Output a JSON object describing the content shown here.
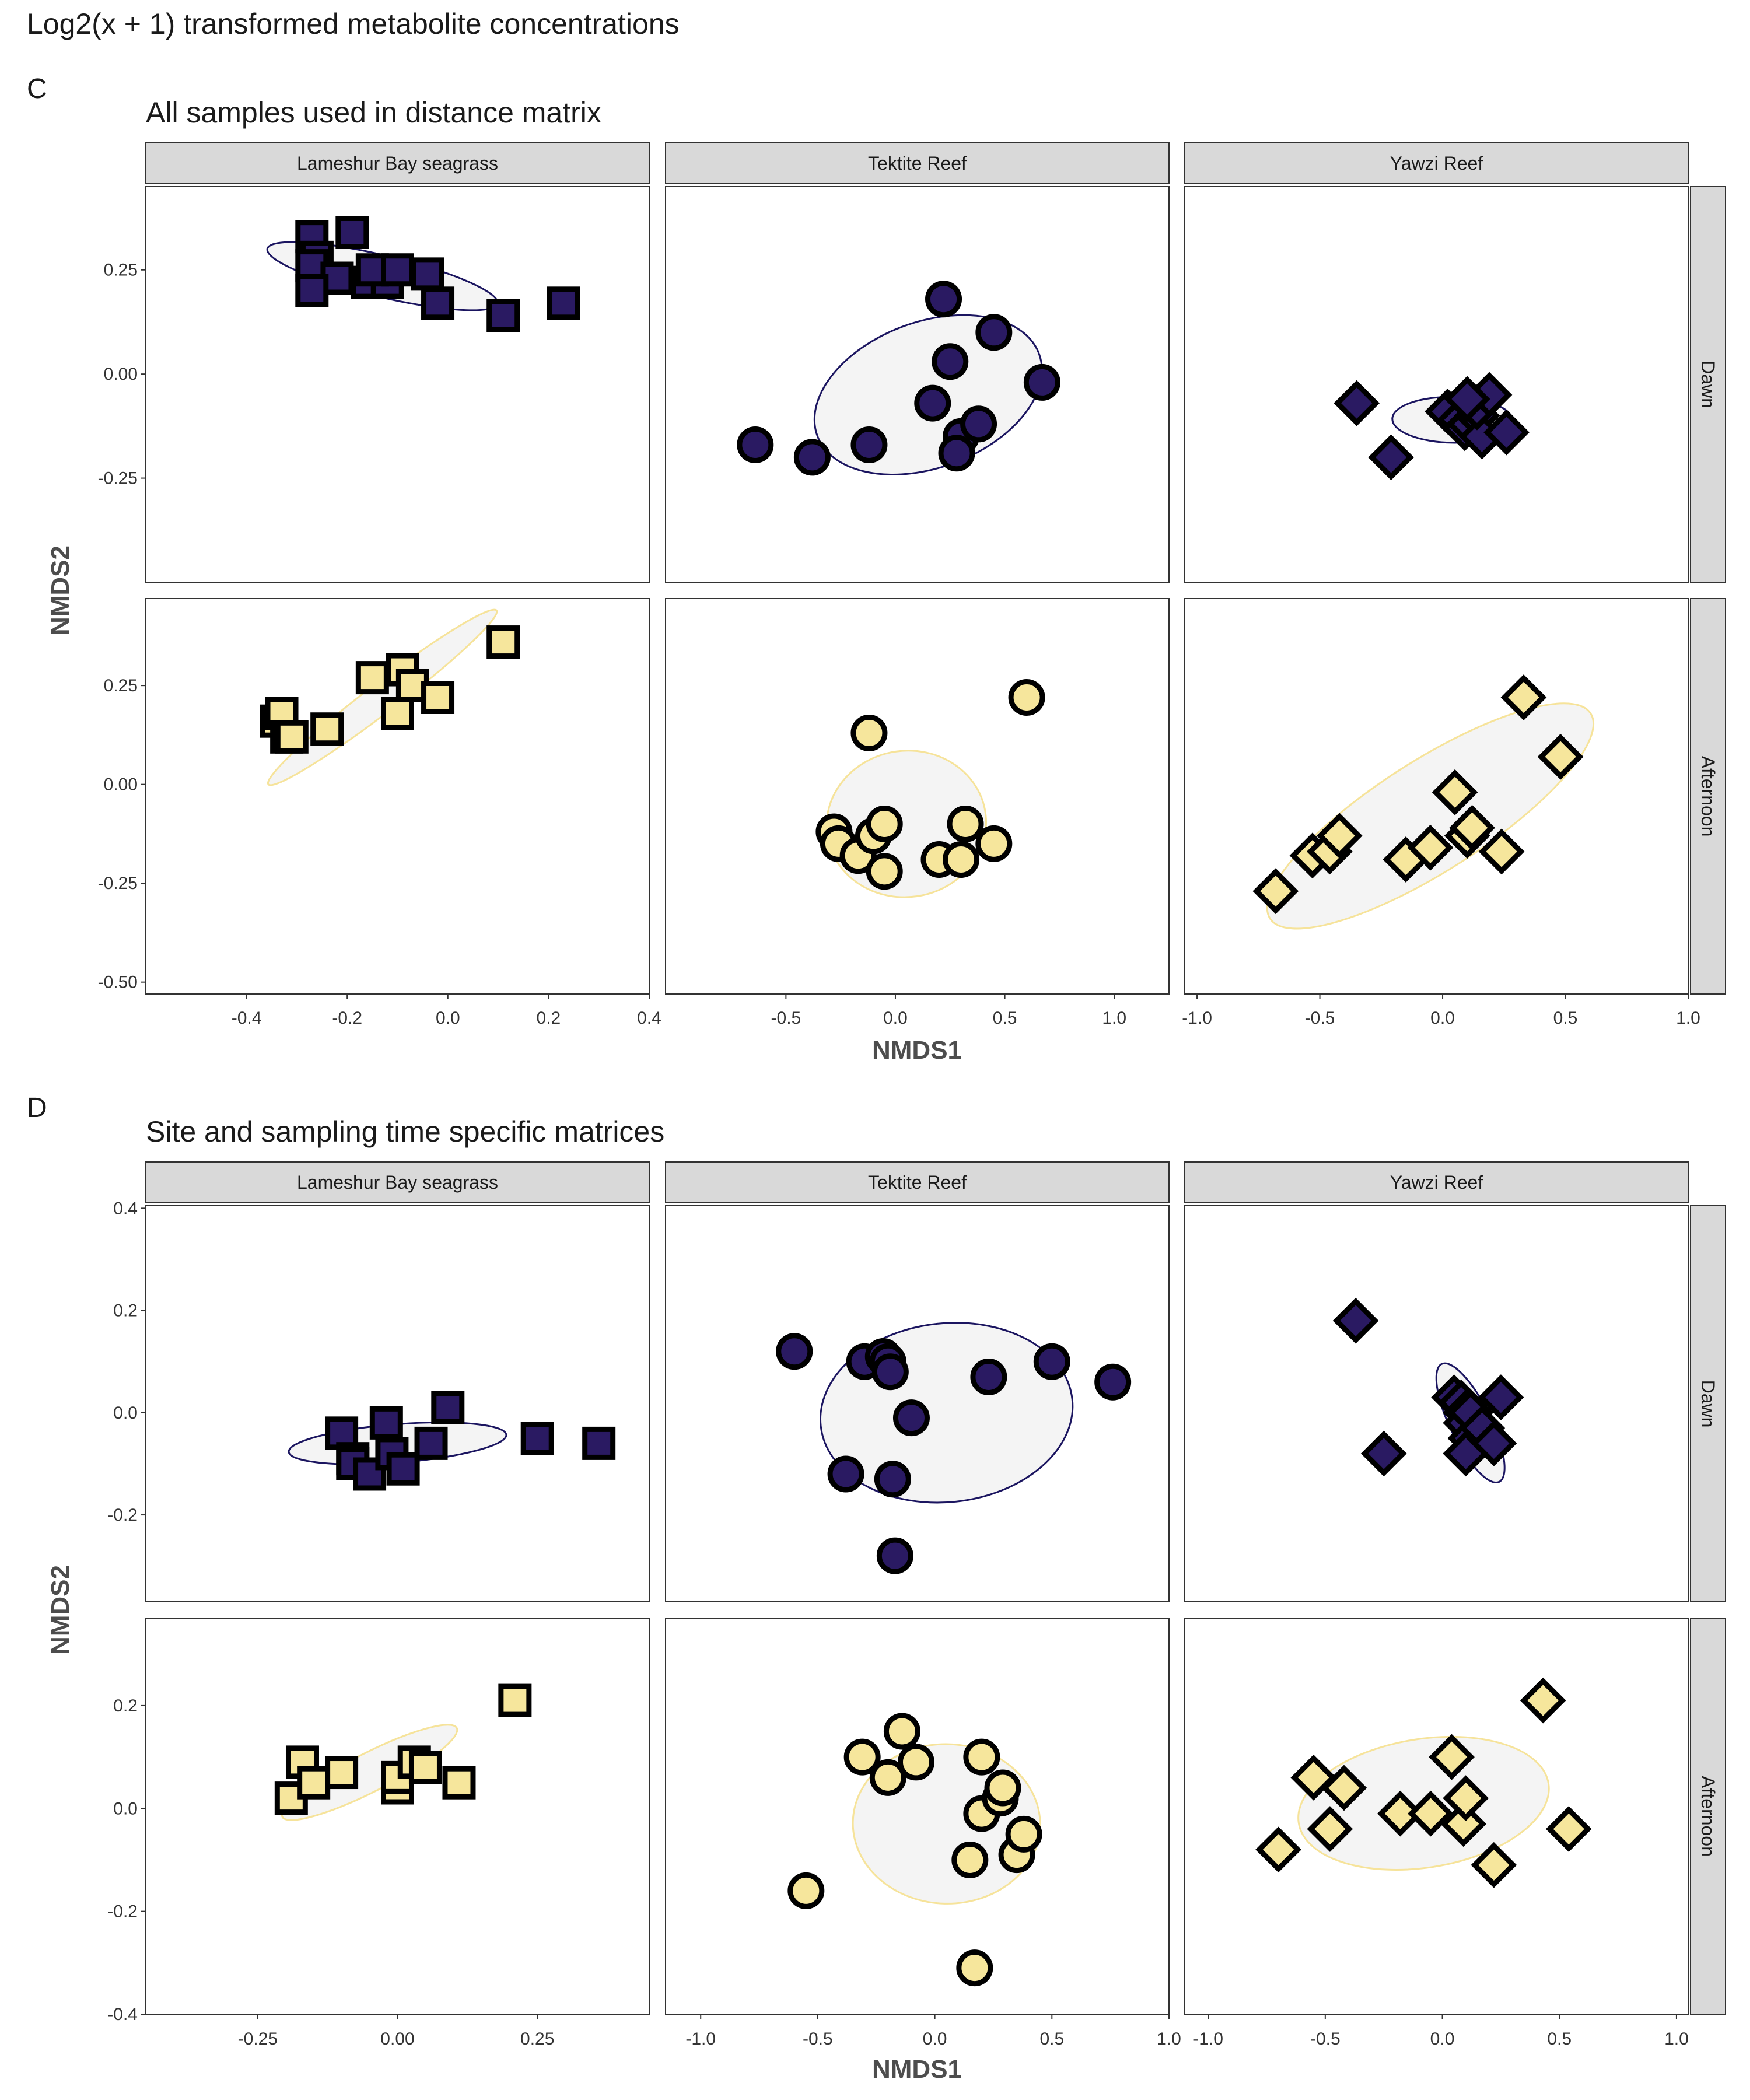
{
  "figure_title": "Log2(x + 1) transformed metabolite concentrations",
  "colors": {
    "dawn": "#2a1a62",
    "afternoon": "#f6e69c",
    "dawn_ellipse": "#1b1560",
    "afternoon_ellipse": "#f6e39a",
    "ellipse_fill": "#f4f4f4",
    "strip_fill": "#d9d9d9"
  },
  "shapes": {
    "Lameshur Bay seagrass": "square",
    "Tektite Reef": "circle",
    "Yawzi Reef": "diamond"
  },
  "chart_data": [
    {
      "type": "scatter",
      "panel_letter": "C",
      "subtitle": "All samples used in distance matrix",
      "xlabel": "NMDS1",
      "ylabel": "NMDS2",
      "facet_cols": [
        "Lameshur Bay seagrass",
        "Tektite Reef",
        "Yawzi Reef"
      ],
      "facet_rows": [
        "Dawn",
        "Afternoon"
      ],
      "row_ylims": [
        [
          -0.5,
          0.45
        ],
        [
          -0.53,
          0.47
        ]
      ],
      "row_yticks": [
        [
          "-0.25",
          "0.00",
          "0.25"
        ],
        [
          "-0.50",
          "-0.25",
          "0.00",
          "0.25"
        ]
      ],
      "col_xlims": [
        [
          -0.6,
          0.4
        ],
        [
          -1.05,
          1.25
        ],
        [
          -1.05,
          1.0
        ]
      ],
      "col_xticks": [
        [
          "-0.4",
          "-0.2",
          "0.0",
          "0.2",
          "0.4"
        ],
        [
          "-0.5",
          "0.0",
          "0.5",
          "1.0"
        ],
        [
          "-1.0",
          "-0.5",
          "0.0",
          "0.5",
          "1.0"
        ]
      ],
      "grid": false,
      "panels": [
        {
          "site": "Lameshur Bay seagrass",
          "time": "Dawn",
          "points": [
            [
              -0.27,
              0.33
            ],
            [
              -0.19,
              0.34
            ],
            [
              -0.26,
              0.28
            ],
            [
              -0.27,
              0.26
            ],
            [
              -0.22,
              0.23
            ],
            [
              -0.16,
              0.22
            ],
            [
              -0.12,
              0.22
            ],
            [
              -0.15,
              0.25
            ],
            [
              -0.1,
              0.25
            ],
            [
              -0.04,
              0.24
            ],
            [
              -0.27,
              0.2
            ],
            [
              -0.02,
              0.17
            ],
            [
              0.11,
              0.14
            ],
            [
              0.23,
              0.17
            ]
          ],
          "ellipse": {
            "cx": -0.13,
            "cy": 0.235,
            "rx": 0.47,
            "ry": 0.1,
            "angle": -13.4
          }
        },
        {
          "site": "Tektite Reef",
          "time": "Dawn",
          "points": [
            [
              -0.64,
              -0.17
            ],
            [
              -0.38,
              -0.2
            ],
            [
              -0.12,
              -0.17
            ],
            [
              0.17,
              -0.07
            ],
            [
              0.22,
              0.18
            ],
            [
              0.25,
              0.03
            ],
            [
              0.3,
              -0.15
            ],
            [
              0.28,
              -0.19
            ],
            [
              0.38,
              -0.12
            ],
            [
              0.45,
              0.1
            ],
            [
              0.67,
              -0.02
            ]
          ],
          "ellipse": {
            "cx": 0.15,
            "cy": -0.05,
            "rx": 1.08,
            "ry": 0.35,
            "angle": 20.3
          }
        },
        {
          "site": "Yawzi Reef",
          "time": "Dawn",
          "points": [
            [
              -0.35,
              -0.07
            ],
            [
              -0.21,
              -0.2
            ],
            [
              0.02,
              -0.09
            ],
            [
              0.07,
              -0.11
            ],
            [
              0.09,
              -0.13
            ],
            [
              0.11,
              -0.12
            ],
            [
              0.14,
              -0.1
            ],
            [
              0.16,
              -0.15
            ],
            [
              0.14,
              -0.08
            ],
            [
              0.19,
              -0.05
            ],
            [
              0.26,
              -0.14
            ],
            [
              0.1,
              -0.06
            ]
          ],
          "ellipse": {
            "cx": 0.04,
            "cy": -0.11,
            "rx": 0.49,
            "ry": 0.11,
            "angle": -1
          }
        },
        {
          "site": "Lameshur Bay seagrass",
          "time": "Afternoon",
          "points": [
            [
              -0.34,
              0.16
            ],
            [
              -0.33,
              0.18
            ],
            [
              -0.32,
              0.12
            ],
            [
              -0.31,
              0.12
            ],
            [
              -0.24,
              0.14
            ],
            [
              -0.15,
              0.27
            ],
            [
              -0.09,
              0.29
            ],
            [
              -0.07,
              0.25
            ],
            [
              -0.1,
              0.18
            ],
            [
              -0.02,
              0.22
            ],
            [
              0.11,
              0.36
            ]
          ],
          "ellipse": {
            "cx": -0.13,
            "cy": 0.22,
            "rx": 0.57,
            "ry": 0.075,
            "angle": 37.3
          }
        },
        {
          "site": "Tektite Reef",
          "time": "Afternoon",
          "points": [
            [
              -0.28,
              -0.12
            ],
            [
              -0.26,
              -0.15
            ],
            [
              -0.17,
              -0.18
            ],
            [
              -0.12,
              0.13
            ],
            [
              -0.1,
              -0.13
            ],
            [
              -0.05,
              -0.1
            ],
            [
              -0.05,
              -0.22
            ],
            [
              0.2,
              -0.19
            ],
            [
              0.3,
              -0.19
            ],
            [
              0.32,
              -0.1
            ],
            [
              0.45,
              -0.15
            ],
            [
              0.6,
              0.22
            ]
          ],
          "ellipse": {
            "cx": 0.05,
            "cy": -0.1,
            "rx": 0.73,
            "ry": 0.37,
            "angle": 8
          }
        },
        {
          "site": "Yawzi Reef",
          "time": "Afternoon",
          "points": [
            [
              -0.68,
              -0.27
            ],
            [
              -0.53,
              -0.18
            ],
            [
              -0.46,
              -0.17
            ],
            [
              -0.42,
              -0.13
            ],
            [
              -0.15,
              -0.19
            ],
            [
              -0.05,
              -0.16
            ],
            [
              0.05,
              -0.02
            ],
            [
              0.1,
              -0.13
            ],
            [
              0.12,
              -0.11
            ],
            [
              0.24,
              -0.17
            ],
            [
              0.33,
              0.22
            ],
            [
              0.48,
              0.07
            ]
          ],
          "ellipse": {
            "cx": -0.05,
            "cy": -0.08,
            "rx": 1.55,
            "ry": 0.28,
            "angle": 32.6
          }
        }
      ]
    },
    {
      "type": "scatter",
      "panel_letter": "D",
      "subtitle": "Site and sampling time specific matrices",
      "xlabel": "NMDS1",
      "ylabel": "NMDS2",
      "facet_cols": [
        "Lameshur Bay seagrass",
        "Tektite Reef",
        "Yawzi Reef"
      ],
      "facet_rows": [
        "Dawn",
        "Afternoon"
      ],
      "row_ylims": [
        [
          -0.37,
          0.405
        ],
        [
          -0.4,
          0.37
        ]
      ],
      "row_yticks": [
        [
          "-0.2",
          "0.0",
          "0.2",
          "0.4"
        ],
        [
          "-0.4",
          "-0.2",
          "0.0",
          "0.2"
        ]
      ],
      "col_xlims": [
        [
          -0.45,
          0.45
        ],
        [
          -1.15,
          1.0
        ],
        [
          -1.1,
          1.05
        ]
      ],
      "col_xticks": [
        [
          "-0.25",
          "0.00",
          "0.25"
        ],
        [
          "-1.0",
          "-0.5",
          "0.0",
          "0.5",
          "1.0"
        ],
        [
          "-1.0",
          "-0.5",
          "0.0",
          "0.5",
          "1.0"
        ]
      ],
      "grid": false,
      "panels": [
        {
          "site": "Lameshur Bay seagrass",
          "time": "Dawn",
          "points": [
            [
              -0.1,
              -0.04
            ],
            [
              -0.08,
              -0.09
            ],
            [
              -0.08,
              -0.1
            ],
            [
              -0.05,
              -0.12
            ],
            [
              -0.02,
              -0.02
            ],
            [
              -0.01,
              -0.08
            ],
            [
              0.01,
              -0.11
            ],
            [
              0.06,
              -0.06
            ],
            [
              0.09,
              0.01
            ],
            [
              0.25,
              -0.05
            ],
            [
              0.36,
              -0.06
            ]
          ],
          "ellipse": {
            "cx": 0.0,
            "cy": -0.06,
            "rx": 0.39,
            "ry": 0.075,
            "angle": 4.5
          }
        },
        {
          "site": "Tektite Reef",
          "time": "Dawn",
          "points": [
            [
              -0.6,
              0.12
            ],
            [
              -0.38,
              -0.12
            ],
            [
              -0.3,
              0.1
            ],
            [
              -0.22,
              0.11
            ],
            [
              -0.2,
              0.1
            ],
            [
              -0.19,
              0.08
            ],
            [
              -0.18,
              -0.13
            ],
            [
              -0.17,
              -0.28
            ],
            [
              -0.1,
              -0.01
            ],
            [
              0.23,
              0.07
            ],
            [
              0.5,
              0.1
            ],
            [
              0.76,
              0.06
            ]
          ],
          "ellipse": {
            "cx": 0.05,
            "cy": 0.0,
            "rx": 1.08,
            "ry": 0.35,
            "angle": 6
          }
        },
        {
          "site": "Yawzi Reef",
          "time": "Dawn",
          "points": [
            [
              -0.37,
              0.18
            ],
            [
              -0.25,
              -0.08
            ],
            [
              0.05,
              0.03
            ],
            [
              0.08,
              0.02
            ],
            [
              0.1,
              0.0
            ],
            [
              0.1,
              -0.02
            ],
            [
              0.12,
              -0.05
            ],
            [
              0.12,
              0.0
            ],
            [
              0.1,
              -0.08
            ],
            [
              0.17,
              -0.03
            ],
            [
              0.22,
              -0.06
            ],
            [
              0.25,
              0.03
            ]
          ],
          "ellipse": {
            "cx": 0.12,
            "cy": -0.02,
            "rx": 0.56,
            "ry": 0.08,
            "angle": -64
          }
        },
        {
          "site": "Lameshur Bay seagrass",
          "time": "Afternoon",
          "points": [
            [
              -0.19,
              0.02
            ],
            [
              -0.17,
              0.09
            ],
            [
              -0.15,
              0.05
            ],
            [
              -0.1,
              0.07
            ],
            [
              0.0,
              0.04
            ],
            [
              0.0,
              0.06
            ],
            [
              0.03,
              0.09
            ],
            [
              0.05,
              0.08
            ],
            [
              0.11,
              0.05
            ],
            [
              0.21,
              0.21
            ]
          ],
          "ellipse": {
            "cx": -0.05,
            "cy": 0.07,
            "rx": 0.35,
            "ry": 0.075,
            "angle": 27
          }
        },
        {
          "site": "Tektite Reef",
          "time": "Afternoon",
          "points": [
            [
              -0.55,
              -0.16
            ],
            [
              -0.31,
              0.1
            ],
            [
              -0.2,
              0.06
            ],
            [
              -0.14,
              0.15
            ],
            [
              -0.08,
              0.09
            ],
            [
              0.17,
              -0.31
            ],
            [
              0.15,
              -0.1
            ],
            [
              0.2,
              0.1
            ],
            [
              0.2,
              -0.01
            ],
            [
              0.28,
              0.02
            ],
            [
              0.29,
              0.04
            ],
            [
              0.35,
              -0.09
            ],
            [
              0.38,
              -0.05
            ]
          ],
          "ellipse": {
            "cx": 0.05,
            "cy": -0.03,
            "rx": 0.8,
            "ry": 0.31,
            "angle": -1.5
          }
        },
        {
          "site": "Yawzi Reef",
          "time": "Afternoon",
          "points": [
            [
              -0.7,
              -0.08
            ],
            [
              -0.55,
              0.06
            ],
            [
              -0.48,
              -0.04
            ],
            [
              -0.42,
              0.04
            ],
            [
              -0.18,
              -0.01
            ],
            [
              -0.05,
              -0.01
            ],
            [
              0.04,
              0.1
            ],
            [
              0.09,
              -0.03
            ],
            [
              0.1,
              0.02
            ],
            [
              0.22,
              -0.11
            ],
            [
              0.43,
              0.21
            ],
            [
              0.54,
              -0.04
            ]
          ],
          "ellipse": {
            "cx": -0.08,
            "cy": 0.01,
            "rx": 1.08,
            "ry": 0.25,
            "angle": 9
          }
        }
      ]
    }
  ]
}
